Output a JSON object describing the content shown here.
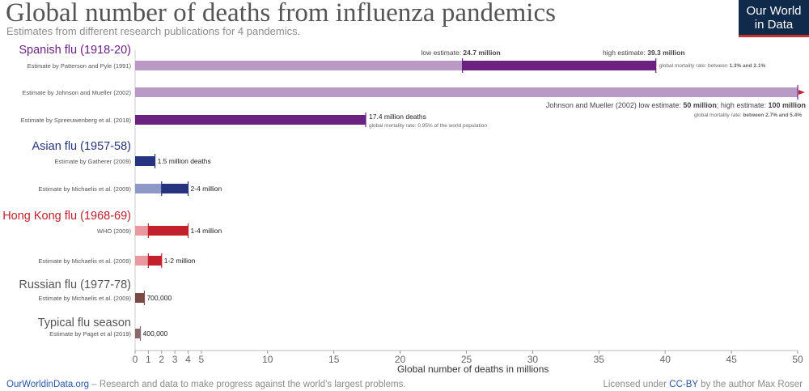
{
  "header": {
    "title": "Global number of deaths from influenza pandemics",
    "subtitle": "Estimates from different research publications for 4 pandemics."
  },
  "logo": {
    "line1": "Our World",
    "line2": "in Data"
  },
  "footer": {
    "site": "OurWorldinData.org",
    "tagline": " – Research and data to make progress against the world's largest problems.",
    "license_prefix": "Licensed under ",
    "license": "CC-BY",
    "license_suffix": " by the author Max Roser"
  },
  "colors": {
    "spanish_dark": "#6b2182",
    "spanish_light": "#b99ac6",
    "asian_dark": "#26337e",
    "asian_light": "#8f99c7",
    "hongkong_dark": "#c2202a",
    "hongkong_light": "#e99aa1",
    "russian_dark": "#7a4a47",
    "typical_dark": "#8a6b6b",
    "title_spanish": "#6b2182",
    "title_asian": "#26337e",
    "title_hongkong": "#c2202a",
    "title_russian": "#555555",
    "title_typical": "#555555"
  },
  "chart_data": {
    "type": "bar",
    "orientation": "horizontal",
    "xlabel": "Global number of deaths in millions",
    "xlim": [
      0,
      50
    ],
    "xticks": [
      0,
      1,
      2,
      3,
      4,
      5,
      10,
      15,
      20,
      25,
      30,
      35,
      40,
      45,
      50
    ],
    "groups": [
      {
        "name": "Spanish flu (1918-20)",
        "color_key": "spanish",
        "estimates": [
          {
            "label": "Estimate by Patterson and Pyle (1991)",
            "low": 24.7,
            "high": 39.3,
            "low_text_prefix": "low estimate: ",
            "low_text_value": "24.7 million",
            "high_text_prefix": "high estimate: ",
            "high_text_value": "39.3 million",
            "note_prefix": "global mortality rate: between ",
            "note_value": "1.3% and 2.1%"
          },
          {
            "label": "Estimate by Johnson and Mueller (2002)",
            "low": 50,
            "high": 100,
            "range_text_1": "Johnson and Mueller (2002) low estimate: ",
            "range_val_1": "50 million",
            "range_text_2": "; high estimate: ",
            "range_val_2": "100 million",
            "note_prefix": "global mortality rate: ",
            "note_value": "between 2.7% and 5.4%"
          },
          {
            "label": "Estimate by Spreeuwenberg et al. (2018)",
            "low": 17.4,
            "high": null,
            "value_text": "17.4 million deaths",
            "note_prefix": "global mortality rate: 0.95% of the world population",
            "note_value": ""
          }
        ]
      },
      {
        "name": "Asian flu (1957-58)",
        "color_key": "asian",
        "estimates": [
          {
            "label": "Estimate by Gatherer (2009)",
            "low": 1.5,
            "high": null,
            "value_text": "1.5 million deaths"
          },
          {
            "label": "Estimate by Michaelis et al. (2009)",
            "low": 2,
            "high": 4,
            "value_text": "2-4 million"
          }
        ]
      },
      {
        "name": "Hong Kong flu (1968-69)",
        "color_key": "hongkong",
        "estimates": [
          {
            "label": "WHO (2009)",
            "low": 1,
            "high": 4,
            "value_text": "1-4 million"
          },
          {
            "label": "Estimate by Michaelis et al. (2009)",
            "low": 1,
            "high": 2,
            "value_text": "1-2 million"
          }
        ]
      },
      {
        "name": "Russian flu (1977-78)",
        "color_key": "russian",
        "estimates": [
          {
            "label": "Estimate by Michaelis et al. (2009)",
            "low": 0.7,
            "high": null,
            "value_text": "700,000"
          }
        ]
      },
      {
        "name": "Typical flu season",
        "color_key": "typical",
        "estimates": [
          {
            "label": "Estimate by Paget et al (2019)",
            "low": 0.4,
            "high": null,
            "value_text": "400,000"
          }
        ]
      }
    ]
  }
}
